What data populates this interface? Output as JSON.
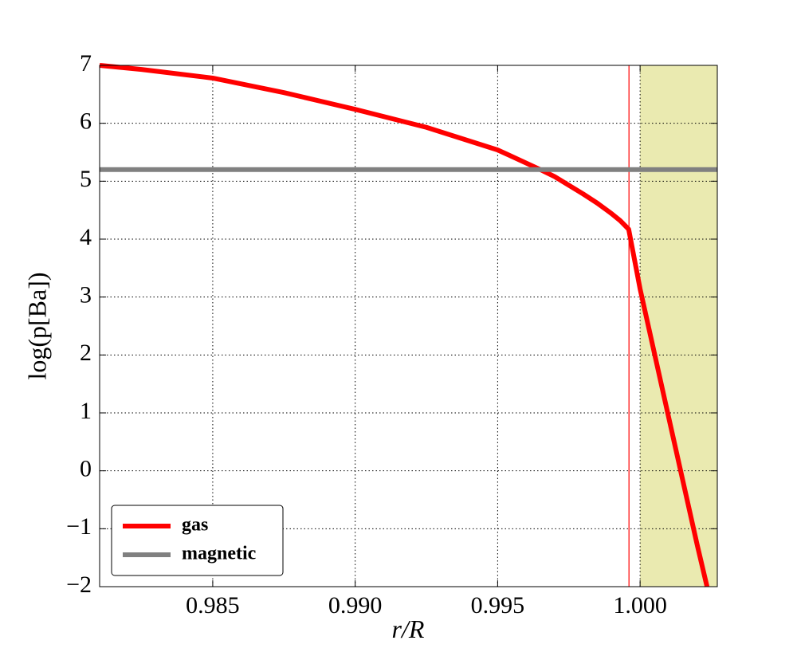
{
  "chart_data": {
    "type": "line",
    "xlabel": "r/R",
    "ylabel": "log(p[Ba])",
    "xlim": [
      0.98103,
      1.00271
    ],
    "ylim": [
      -2,
      7
    ],
    "xticks": [
      0.985,
      {
        "value": 0.99,
        "label": "0.990"
      },
      0.995,
      {
        "value": 1,
        "label": "1.000"
      }
    ],
    "yticks": [
      {
        "value": -2,
        "label": "−2"
      },
      {
        "value": -1,
        "label": "−1"
      },
      0,
      1,
      2,
      3,
      4,
      5,
      6,
      7
    ],
    "grid": true,
    "legend": "lower left",
    "series": [
      {
        "name": "gas",
        "color": "#ff0000",
        "x": [
          0.98103,
          0.9825,
          0.985,
          0.9875,
          0.99,
          0.9925,
          0.995,
          0.9965,
          0.997,
          0.998,
          0.9985,
          0.999,
          0.9993,
          0.9996,
          1.0,
          1.001,
          1.002,
          1.00235
        ],
        "values": [
          7.0,
          6.93,
          6.78,
          6.53,
          6.24,
          5.93,
          5.54,
          5.2,
          5.08,
          4.78,
          4.62,
          4.44,
          4.32,
          4.17,
          3.14,
          0.93,
          -1.27,
          -2.0
        ]
      },
      {
        "name": "magnetic",
        "color": "#808080",
        "y": 5.2
      }
    ],
    "vline": {
      "x": 0.99961,
      "color": "#ff0000"
    },
    "xspan": {
      "range": [
        1.0,
        1.00271
      ],
      "color": "#eaeab0"
    }
  }
}
